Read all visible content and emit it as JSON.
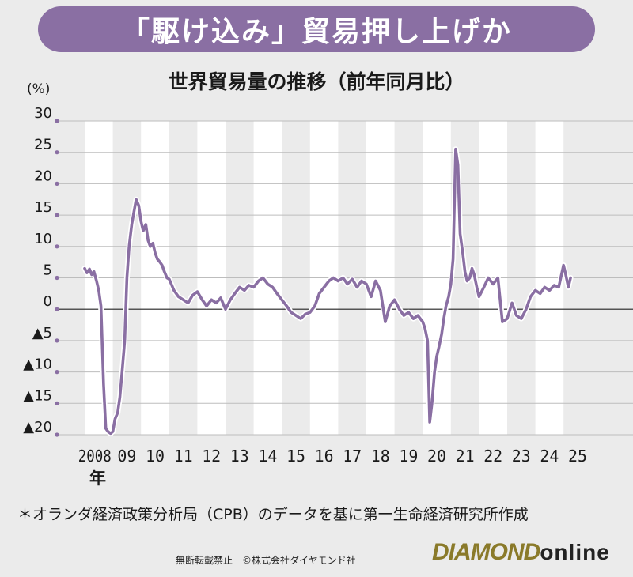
{
  "headline": "「駆け込み」貿易押し上げか",
  "note": "＊オランダ経済政策分析局（CPB）のデータを基に第一生命経済研究所作成",
  "copyright": "無断転載禁止　©株式会社ダイヤモンド社",
  "brand": {
    "part1": "DIAMOND",
    "part2": "online"
  },
  "colors": {
    "line": "#8a6fa3",
    "headline_bg": "#8a6fa3",
    "background": "#ebebeb",
    "band": "#ffffff"
  },
  "chart_data": {
    "type": "line",
    "title": "世界貿易量の推移（前年同月比）",
    "unit_label": "(%)",
    "ylim": [
      -20,
      30
    ],
    "yticks": [
      {
        "value": 30,
        "label": "30"
      },
      {
        "value": 25,
        "label": "25"
      },
      {
        "value": 20,
        "label": "20"
      },
      {
        "value": 15,
        "label": "15"
      },
      {
        "value": 10,
        "label": "10"
      },
      {
        "value": 5,
        "label": "5"
      },
      {
        "value": 0,
        "label": "0"
      },
      {
        "value": -5,
        "label": "▲5"
      },
      {
        "value": -10,
        "label": "▲10"
      },
      {
        "value": -15,
        "label": "▲15"
      },
      {
        "value": -20,
        "label": "▲20"
      }
    ],
    "xlim": [
      2008,
      2026
    ],
    "xticks": [
      {
        "value": 2008,
        "label": "2008"
      },
      {
        "value": 2009,
        "label": "09"
      },
      {
        "value": 2010,
        "label": "10"
      },
      {
        "value": 2011,
        "label": "11"
      },
      {
        "value": 2012,
        "label": "12"
      },
      {
        "value": 2013,
        "label": "13"
      },
      {
        "value": 2014,
        "label": "14"
      },
      {
        "value": 2015,
        "label": "15"
      },
      {
        "value": 2016,
        "label": "16"
      },
      {
        "value": 2017,
        "label": "17"
      },
      {
        "value": 2018,
        "label": "18"
      },
      {
        "value": 2019,
        "label": "19"
      },
      {
        "value": 2020,
        "label": "20"
      },
      {
        "value": 2021,
        "label": "21"
      },
      {
        "value": 2022,
        "label": "22"
      },
      {
        "value": 2023,
        "label": "23"
      },
      {
        "value": 2024,
        "label": "24"
      },
      {
        "value": 2025,
        "label": "25"
      }
    ],
    "x_suffix": "年",
    "grid": true,
    "series": [
      {
        "x": [
          2008.0,
          2008.08,
          2008.17,
          2008.25,
          2008.33,
          2008.42,
          2008.5,
          2008.58,
          2008.67,
          2008.75,
          2008.83,
          2008.92,
          2009.0,
          2009.08,
          2009.17,
          2009.25,
          2009.33,
          2009.42,
          2009.5,
          2009.58,
          2009.67,
          2009.75,
          2009.83,
          2009.92,
          2010.0,
          2010.08,
          2010.17,
          2010.25,
          2010.33,
          2010.42,
          2010.5,
          2010.58,
          2010.67,
          2010.75,
          2010.83,
          2010.92,
          2011.0,
          2011.17,
          2011.33,
          2011.5,
          2011.67,
          2011.83,
          2012.0,
          2012.17,
          2012.33,
          2012.5,
          2012.67,
          2012.83,
          2013.0,
          2013.17,
          2013.33,
          2013.5,
          2013.67,
          2013.83,
          2014.0,
          2014.17,
          2014.33,
          2014.5,
          2014.67,
          2014.83,
          2015.0,
          2015.17,
          2015.33,
          2015.5,
          2015.67,
          2015.83,
          2016.0,
          2016.17,
          2016.33,
          2016.5,
          2016.67,
          2016.83,
          2017.0,
          2017.17,
          2017.33,
          2017.5,
          2017.67,
          2017.83,
          2018.0,
          2018.17,
          2018.33,
          2018.5,
          2018.67,
          2018.83,
          2019.0,
          2019.17,
          2019.33,
          2019.5,
          2019.67,
          2019.83,
          2020.0,
          2020.08,
          2020.17,
          2020.25,
          2020.33,
          2020.42,
          2020.5,
          2020.58,
          2020.67,
          2020.75,
          2020.83,
          2020.92,
          2021.0,
          2021.08,
          2021.17,
          2021.25,
          2021.33,
          2021.42,
          2021.5,
          2021.58,
          2021.67,
          2021.75,
          2021.83,
          2021.92,
          2022.0,
          2022.17,
          2022.33,
          2022.5,
          2022.67,
          2022.83,
          2023.0,
          2023.17,
          2023.33,
          2023.5,
          2023.67,
          2023.83,
          2024.0,
          2024.17,
          2024.33,
          2024.5,
          2024.67,
          2024.83,
          2025.0,
          2025.08,
          2025.17,
          2025.25
        ],
        "values": [
          6.5,
          5.8,
          6.4,
          5.5,
          6.0,
          4.5,
          3.0,
          0.5,
          -12.0,
          -19.0,
          -19.5,
          -19.8,
          -19.5,
          -17.5,
          -16.5,
          -14.0,
          -10.0,
          -5.0,
          5.0,
          10.0,
          13.5,
          15.5,
          17.5,
          16.5,
          14.0,
          12.5,
          13.5,
          11.0,
          10.0,
          10.5,
          9.0,
          8.0,
          7.5,
          7.0,
          6.0,
          5.0,
          4.8,
          3.0,
          2.0,
          1.5,
          1.0,
          2.2,
          2.8,
          1.5,
          0.5,
          1.5,
          1.0,
          1.8,
          0.0,
          1.5,
          2.5,
          3.5,
          3.0,
          3.8,
          3.5,
          4.5,
          5.0,
          4.0,
          3.5,
          2.5,
          1.5,
          0.5,
          -0.5,
          -1.0,
          -1.5,
          -0.8,
          -0.5,
          0.5,
          2.5,
          3.5,
          4.5,
          5.0,
          4.5,
          5.0,
          4.0,
          4.8,
          3.5,
          4.5,
          4.0,
          2.0,
          4.5,
          3.0,
          -2.0,
          0.5,
          1.5,
          0.0,
          -1.0,
          -0.5,
          -1.5,
          -1.0,
          -2.0,
          -3.0,
          -5.0,
          -18.0,
          -15.0,
          -10.0,
          -7.5,
          -6.0,
          -4.0,
          -1.5,
          0.5,
          2.0,
          4.0,
          8.0,
          25.5,
          23.0,
          12.0,
          9.0,
          6.0,
          4.5,
          5.0,
          6.5,
          5.5,
          3.5,
          2.0,
          3.5,
          5.0,
          4.0,
          5.0,
          -2.0,
          -1.5,
          1.0,
          -1.0,
          -1.5,
          0.0,
          2.0,
          3.0,
          2.5,
          3.5,
          3.0,
          3.8,
          3.5,
          7.0,
          5.5,
          3.5,
          5.0
        ]
      }
    ]
  }
}
